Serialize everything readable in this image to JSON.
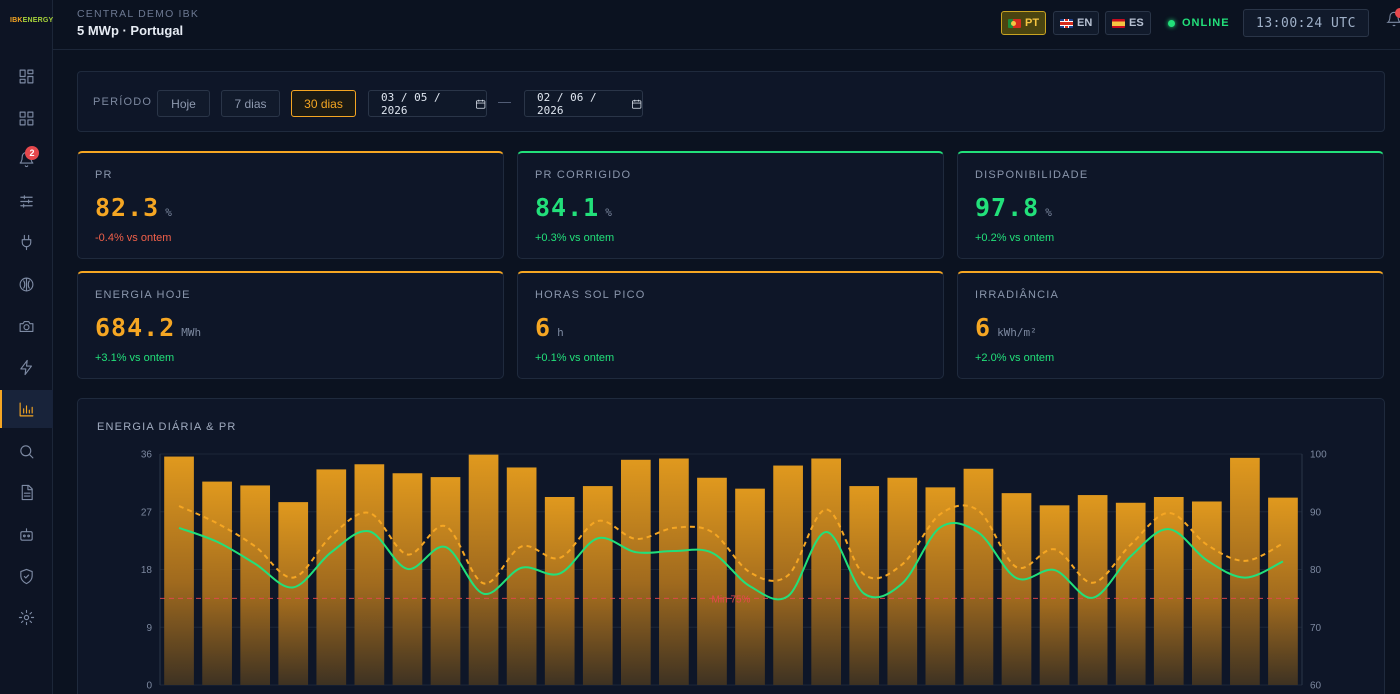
{
  "brand": {
    "logo_a": "IBK",
    "logo_b": "ENERGY"
  },
  "sidebar": {
    "items": [
      {
        "name": "dashboard-icon",
        "active": false
      },
      {
        "name": "grid-icon",
        "active": false
      },
      {
        "name": "bell-icon",
        "active": false,
        "badge": "2"
      },
      {
        "name": "sliders-icon",
        "active": false
      },
      {
        "name": "plug-icon",
        "active": false
      },
      {
        "name": "brain-icon",
        "active": false
      },
      {
        "name": "camera-icon",
        "active": false
      },
      {
        "name": "bolt-icon",
        "active": false
      },
      {
        "name": "bar-chart-icon",
        "active": true
      },
      {
        "name": "search-icon",
        "active": false
      },
      {
        "name": "document-icon",
        "active": false
      },
      {
        "name": "robot-icon",
        "active": false
      },
      {
        "name": "shield-icon",
        "active": false
      },
      {
        "name": "gear-icon",
        "active": false
      }
    ]
  },
  "header": {
    "subtitle": "CENTRAL DEMO IBK",
    "title": "5 MWp · Portugal",
    "languages": [
      {
        "code": "PT",
        "active": true
      },
      {
        "code": "EN",
        "active": false
      },
      {
        "code": "ES",
        "active": false
      }
    ],
    "status": "ONLINE",
    "clock": "13:00:24 UTC"
  },
  "period": {
    "label": "PERÍODO",
    "buttons": [
      {
        "label": "Hoje",
        "active": false
      },
      {
        "label": "7 dias",
        "active": false
      },
      {
        "label": "30 dias",
        "active": true
      }
    ],
    "date_from": "03 / 05 / 2026",
    "date_sep": "—",
    "date_to": "02 / 06 / 2026"
  },
  "kpis": [
    {
      "label": "PR",
      "value": "82.3",
      "unit": "%",
      "delta": "-0.4% vs ontem",
      "positive": false,
      "accent": "amber"
    },
    {
      "label": "PR CORRIGIDO",
      "value": "84.1",
      "unit": "%",
      "delta": "+0.3% vs ontem",
      "positive": true,
      "accent": "green"
    },
    {
      "label": "DISPONIBILIDADE",
      "value": "97.8",
      "unit": "%",
      "delta": "+0.2% vs ontem",
      "positive": true,
      "accent": "green"
    },
    {
      "label": "ENERGIA HOJE",
      "value": "684.2",
      "unit": "MWh",
      "delta": "+3.1% vs ontem",
      "positive": true,
      "accent": "amber"
    },
    {
      "label": "HORAS SOL PICO",
      "value": "6",
      "unit": "h",
      "delta": "+0.1% vs ontem",
      "positive": true,
      "accent": "amber"
    },
    {
      "label": "IRRADIÂNCIA",
      "value": "6",
      "unit": "kWh/m²",
      "delta": "+2.0% vs ontem",
      "positive": true,
      "accent": "amber"
    }
  ],
  "colors": {
    "amber": "#f5a623",
    "green": "#22e07a",
    "red": "#e5484d",
    "bg": "#0b1220"
  },
  "chart_data": {
    "type": "bar",
    "title": "ENERGIA DIÁRIA & PR",
    "left_axis": {
      "ylim": [
        0,
        36
      ],
      "ticks": [
        0,
        9,
        18,
        27,
        36
      ]
    },
    "right_axis": {
      "ylim": [
        60,
        100
      ],
      "ticks": [
        60,
        70,
        80,
        90,
        100
      ]
    },
    "grid": true,
    "threshold": {
      "label": "Min 75%",
      "value": 75,
      "axis": "right"
    },
    "series": [
      {
        "type": "bar",
        "axis": "left",
        "color": "#f5a623",
        "values": [
          35.6,
          31.7,
          31.1,
          28.5,
          33.6,
          34.4,
          33.0,
          32.4,
          35.9,
          33.9,
          29.3,
          31.0,
          35.1,
          35.3,
          32.3,
          30.6,
          34.2,
          35.3,
          31.0,
          32.3,
          30.8,
          33.7,
          29.9,
          28.0,
          29.6,
          28.4,
          29.3,
          28.6,
          35.4,
          29.2
        ]
      },
      {
        "type": "line",
        "style": "solid",
        "axis": "right",
        "color": "#22e07a",
        "values": [
          87.2,
          84.8,
          81.0,
          76.9,
          83.0,
          86.6,
          80.1,
          83.9,
          75.8,
          80.3,
          79.3,
          85.4,
          83.0,
          83.2,
          82.9,
          77.1,
          75.4,
          86.5,
          75.8,
          77.6,
          87.3,
          86.4,
          78.5,
          79.9,
          75.1,
          82.3,
          87.0,
          81.6,
          78.6,
          81.4
        ]
      },
      {
        "type": "line",
        "style": "dashed",
        "axis": "right",
        "color": "#f5a623",
        "values": [
          91.0,
          88.0,
          84.0,
          78.6,
          85.8,
          89.8,
          82.6,
          87.5,
          77.6,
          84.0,
          82.0,
          88.4,
          85.3,
          87.2,
          86.5,
          79.5,
          79.0,
          90.4,
          79.1,
          80.9,
          89.6,
          90.2,
          80.4,
          83.5,
          77.7,
          84.3,
          89.8,
          84.3,
          81.5,
          84.5
        ]
      }
    ]
  }
}
